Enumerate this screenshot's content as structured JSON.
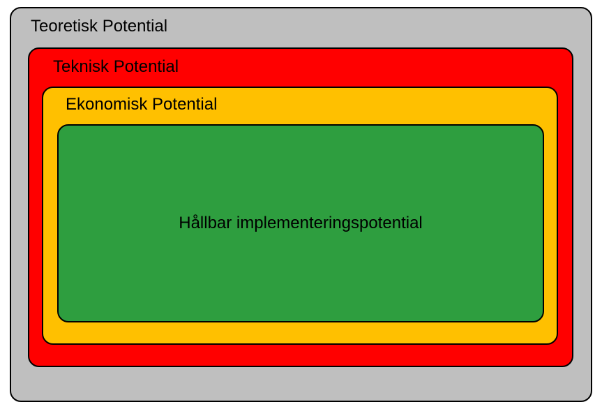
{
  "diagram": {
    "type": "nested-boxes",
    "background_color": "#ffffff",
    "border_color": "#000000",
    "border_width": 2,
    "border_radius": 16,
    "font_family": "Arial",
    "label_fontsize": 24,
    "label_color": "#000000",
    "levels": [
      {
        "label": "Teoretisk Potential",
        "fill_color": "#bfbfbf",
        "label_position": "top-left"
      },
      {
        "label": "Teknisk Potential",
        "fill_color": "#ff0000",
        "label_position": "top-left"
      },
      {
        "label": "Ekonomisk Potential",
        "fill_color": "#ffc000",
        "label_position": "top-left"
      },
      {
        "label": "Hållbar implementeringspotential",
        "fill_color": "#2e9e3f",
        "label_position": "center"
      }
    ]
  }
}
